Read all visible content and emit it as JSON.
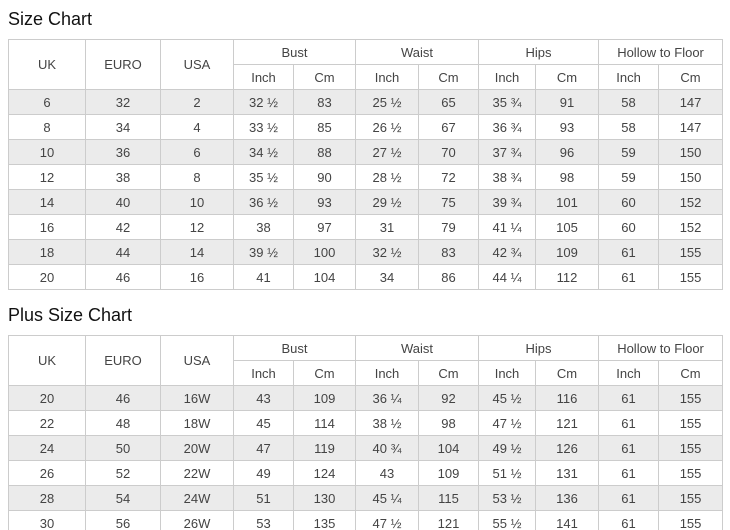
{
  "colors": {
    "row_stripe": "#ebebeb",
    "border": "#cccccc",
    "text": "#444444",
    "title_text": "#111111",
    "background": "#ffffff"
  },
  "size_chart": {
    "title": "Size Chart",
    "header": {
      "uk": "UK",
      "euro": "EURO",
      "usa": "USA",
      "inch": "Inch",
      "cm": "Cm",
      "groups": [
        {
          "label": "Bust"
        },
        {
          "label": "Waist"
        },
        {
          "label": "Hips"
        },
        {
          "label": "Hollow to Floor"
        }
      ]
    },
    "rows": [
      [
        "6",
        "32",
        "2",
        "32 ½",
        "83",
        "25 ½",
        "65",
        "35 ¾",
        "91",
        "58",
        "147"
      ],
      [
        "8",
        "34",
        "4",
        "33 ½",
        "85",
        "26 ½",
        "67",
        "36 ¾",
        "93",
        "58",
        "147"
      ],
      [
        "10",
        "36",
        "6",
        "34 ½",
        "88",
        "27 ½",
        "70",
        "37 ¾",
        "96",
        "59",
        "150"
      ],
      [
        "12",
        "38",
        "8",
        "35 ½",
        "90",
        "28 ½",
        "72",
        "38 ¾",
        "98",
        "59",
        "150"
      ],
      [
        "14",
        "40",
        "10",
        "36 ½",
        "93",
        "29 ½",
        "75",
        "39 ¾",
        "101",
        "60",
        "152"
      ],
      [
        "16",
        "42",
        "12",
        "38",
        "97",
        "31",
        "79",
        "41 ¼",
        "105",
        "60",
        "152"
      ],
      [
        "18",
        "44",
        "14",
        "39 ½",
        "100",
        "32 ½",
        "83",
        "42 ¾",
        "109",
        "61",
        "155"
      ],
      [
        "20",
        "46",
        "16",
        "41",
        "104",
        "34",
        "86",
        "44 ¼",
        "112",
        "61",
        "155"
      ]
    ]
  },
  "plus_size_chart": {
    "title": "Plus Size Chart",
    "header": {
      "uk": "UK",
      "euro": "EURO",
      "usa": "USA",
      "inch": "Inch",
      "cm": "Cm",
      "groups": [
        {
          "label": "Bust"
        },
        {
          "label": "Waist"
        },
        {
          "label": "Hips"
        },
        {
          "label": "Hollow to Floor"
        }
      ]
    },
    "rows": [
      [
        "20",
        "46",
        "16W",
        "43",
        "109",
        "36 ¼",
        "92",
        "45 ½",
        "116",
        "61",
        "155"
      ],
      [
        "22",
        "48",
        "18W",
        "45",
        "114",
        "38 ½",
        "98",
        "47 ½",
        "121",
        "61",
        "155"
      ],
      [
        "24",
        "50",
        "20W",
        "47",
        "119",
        "40 ¾",
        "104",
        "49 ½",
        "126",
        "61",
        "155"
      ],
      [
        "26",
        "52",
        "22W",
        "49",
        "124",
        "43",
        "109",
        "51 ½",
        "131",
        "61",
        "155"
      ],
      [
        "28",
        "54",
        "24W",
        "51",
        "130",
        "45 ¼",
        "115",
        "53 ½",
        "136",
        "61",
        "155"
      ],
      [
        "30",
        "56",
        "26W",
        "53",
        "135",
        "47 ½",
        "121",
        "55 ½",
        "141",
        "61",
        "155"
      ]
    ]
  }
}
